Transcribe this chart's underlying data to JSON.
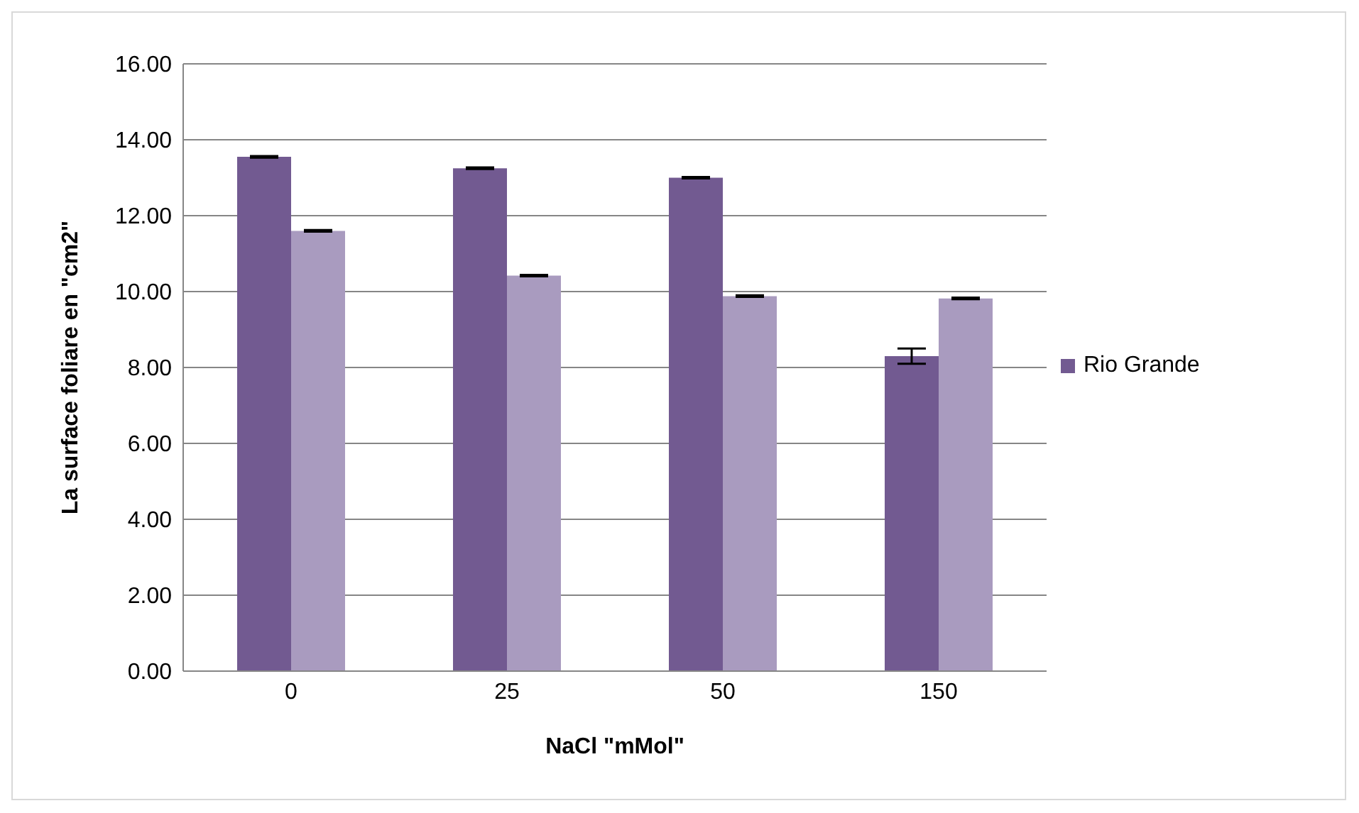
{
  "chart_data": {
    "type": "bar",
    "xlabel": "NaCl \"mMol\"",
    "ylabel": "La surface foliare en \"cm2\"",
    "categories": [
      "0",
      "25",
      "50",
      "150"
    ],
    "series": [
      {
        "name": "Rio Grande",
        "color": "#725a91",
        "values": [
          13.55,
          13.25,
          13.0,
          8.3
        ],
        "errors": [
          0.02,
          0.02,
          0.02,
          0.2
        ]
      },
      {
        "color": "#a99bbf",
        "values": [
          11.6,
          10.42,
          9.88,
          9.82
        ],
        "errors": [
          0.02,
          0.02,
          0.02,
          0.02
        ]
      }
    ],
    "ylim": [
      0,
      16
    ],
    "yticks": [
      {
        "value": 0,
        "label": "0.00"
      },
      {
        "value": 2,
        "label": "2.00"
      },
      {
        "value": 4,
        "label": "4.00"
      },
      {
        "value": 6,
        "label": "6.00"
      },
      {
        "value": 8,
        "label": "8.00"
      },
      {
        "value": 10,
        "label": "10.00"
      },
      {
        "value": 12,
        "label": "12.00"
      },
      {
        "value": 14,
        "label": "14.00"
      },
      {
        "value": 16,
        "label": "16.00"
      }
    ],
    "grid": "y",
    "legend": "right"
  }
}
